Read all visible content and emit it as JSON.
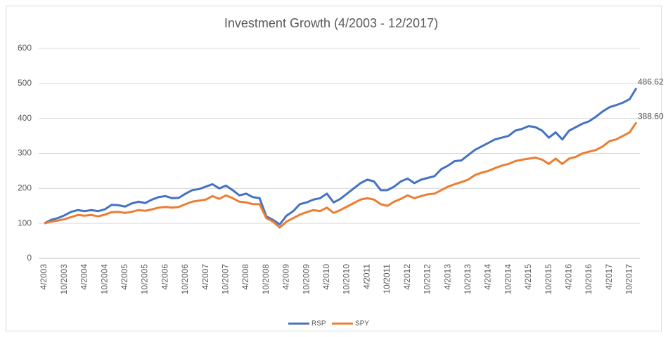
{
  "chart_data": {
    "type": "line",
    "title": "Investment Growth (4/2003 - 12/2017)",
    "categories": [
      "4/2003",
      null,
      null,
      "10/2003",
      null,
      null,
      "4/2004",
      null,
      null,
      "10/2004",
      null,
      null,
      "4/2005",
      null,
      null,
      "10/2005",
      null,
      null,
      "4/2006",
      null,
      null,
      "10/2006",
      null,
      null,
      "4/2007",
      null,
      null,
      "10/2007",
      null,
      null,
      "4/2008",
      null,
      null,
      "10/2008",
      null,
      null,
      "4/2009",
      null,
      null,
      "10/2009",
      null,
      null,
      "4/2010",
      null,
      null,
      "10/2010",
      null,
      null,
      "4/2011",
      null,
      null,
      "10/2011",
      null,
      null,
      "4/2012",
      null,
      null,
      "10/2012",
      null,
      null,
      "4/2013",
      null,
      null,
      "10/2013",
      null,
      null,
      "4/2014",
      null,
      null,
      "10/2014",
      null,
      null,
      "4/2015",
      null,
      null,
      "10/2015",
      null,
      null,
      "4/2016",
      null,
      null,
      "10/2016",
      null,
      null,
      "4/2017",
      null,
      null,
      "10/2017",
      null
    ],
    "series": [
      {
        "name": "RSP",
        "color": "#4472c4",
        "values": [
          100,
          110,
          115,
          123,
          133,
          138,
          135,
          138,
          135,
          140,
          153,
          152,
          148,
          157,
          162,
          158,
          168,
          175,
          178,
          172,
          173,
          185,
          195,
          198,
          205,
          212,
          200,
          208,
          195,
          180,
          185,
          175,
          172,
          120,
          110,
          97,
          122,
          135,
          155,
          160,
          168,
          172,
          185,
          160,
          170,
          185,
          200,
          215,
          225,
          220,
          195,
          195,
          205,
          220,
          228,
          215,
          225,
          230,
          235,
          255,
          265,
          278,
          280,
          295,
          310,
          320,
          330,
          340,
          345,
          350,
          365,
          370,
          378,
          375,
          365,
          345,
          360,
          340,
          365,
          375,
          385,
          392,
          405,
          420,
          432,
          438,
          445,
          455,
          486.62
        ],
        "value_labels": [
          null,
          null,
          null,
          null,
          null,
          null,
          null,
          null,
          null,
          null,
          null,
          null,
          null,
          null,
          null,
          null,
          null,
          null,
          null,
          null,
          null,
          null,
          null,
          null,
          null,
          null,
          null,
          null,
          null,
          null,
          null,
          null,
          null,
          null,
          null,
          null,
          null,
          null,
          null,
          null,
          null,
          null,
          null,
          null,
          null,
          null,
          null,
          null,
          null,
          null,
          null,
          null,
          null,
          null,
          null,
          null,
          null,
          null,
          null,
          null,
          null,
          null,
          null,
          null,
          null,
          null,
          null,
          null,
          null,
          null,
          null,
          null,
          null,
          null,
          null,
          null,
          null,
          null,
          null,
          null,
          null,
          null,
          null,
          null,
          null,
          null,
          null,
          null,
          "486.62"
        ]
      },
      {
        "name": "SPY",
        "color": "#ed7d31",
        "values": [
          100,
          105,
          108,
          112,
          118,
          124,
          122,
          124,
          120,
          125,
          132,
          133,
          130,
          133,
          138,
          136,
          140,
          145,
          147,
          145,
          147,
          155,
          162,
          165,
          168,
          178,
          170,
          180,
          172,
          162,
          160,
          155,
          155,
          115,
          105,
          88,
          105,
          115,
          125,
          132,
          138,
          135,
          145,
          130,
          138,
          148,
          158,
          168,
          172,
          168,
          155,
          150,
          162,
          170,
          180,
          172,
          178,
          183,
          185,
          195,
          205,
          212,
          218,
          225,
          238,
          245,
          250,
          258,
          265,
          270,
          278,
          282,
          285,
          288,
          282,
          270,
          285,
          270,
          285,
          290,
          300,
          305,
          310,
          320,
          335,
          340,
          350,
          360,
          388.6
        ],
        "value_labels": [
          null,
          null,
          null,
          null,
          null,
          null,
          null,
          null,
          null,
          null,
          null,
          null,
          null,
          null,
          null,
          null,
          null,
          null,
          null,
          null,
          null,
          null,
          null,
          null,
          null,
          null,
          null,
          null,
          null,
          null,
          null,
          null,
          null,
          null,
          null,
          null,
          null,
          null,
          null,
          null,
          null,
          null,
          null,
          null,
          null,
          null,
          null,
          null,
          null,
          null,
          null,
          null,
          null,
          null,
          null,
          null,
          null,
          null,
          null,
          null,
          null,
          null,
          null,
          null,
          null,
          null,
          null,
          null,
          null,
          null,
          null,
          null,
          null,
          null,
          null,
          null,
          null,
          null,
          null,
          null,
          null,
          null,
          null,
          null,
          null,
          null,
          null,
          null,
          "388.60"
        ]
      }
    ],
    "ylim": [
      0,
      600
    ],
    "yticks": [
      0,
      100,
      200,
      300,
      400,
      500,
      600
    ],
    "grid": true,
    "legend": "bottom"
  }
}
